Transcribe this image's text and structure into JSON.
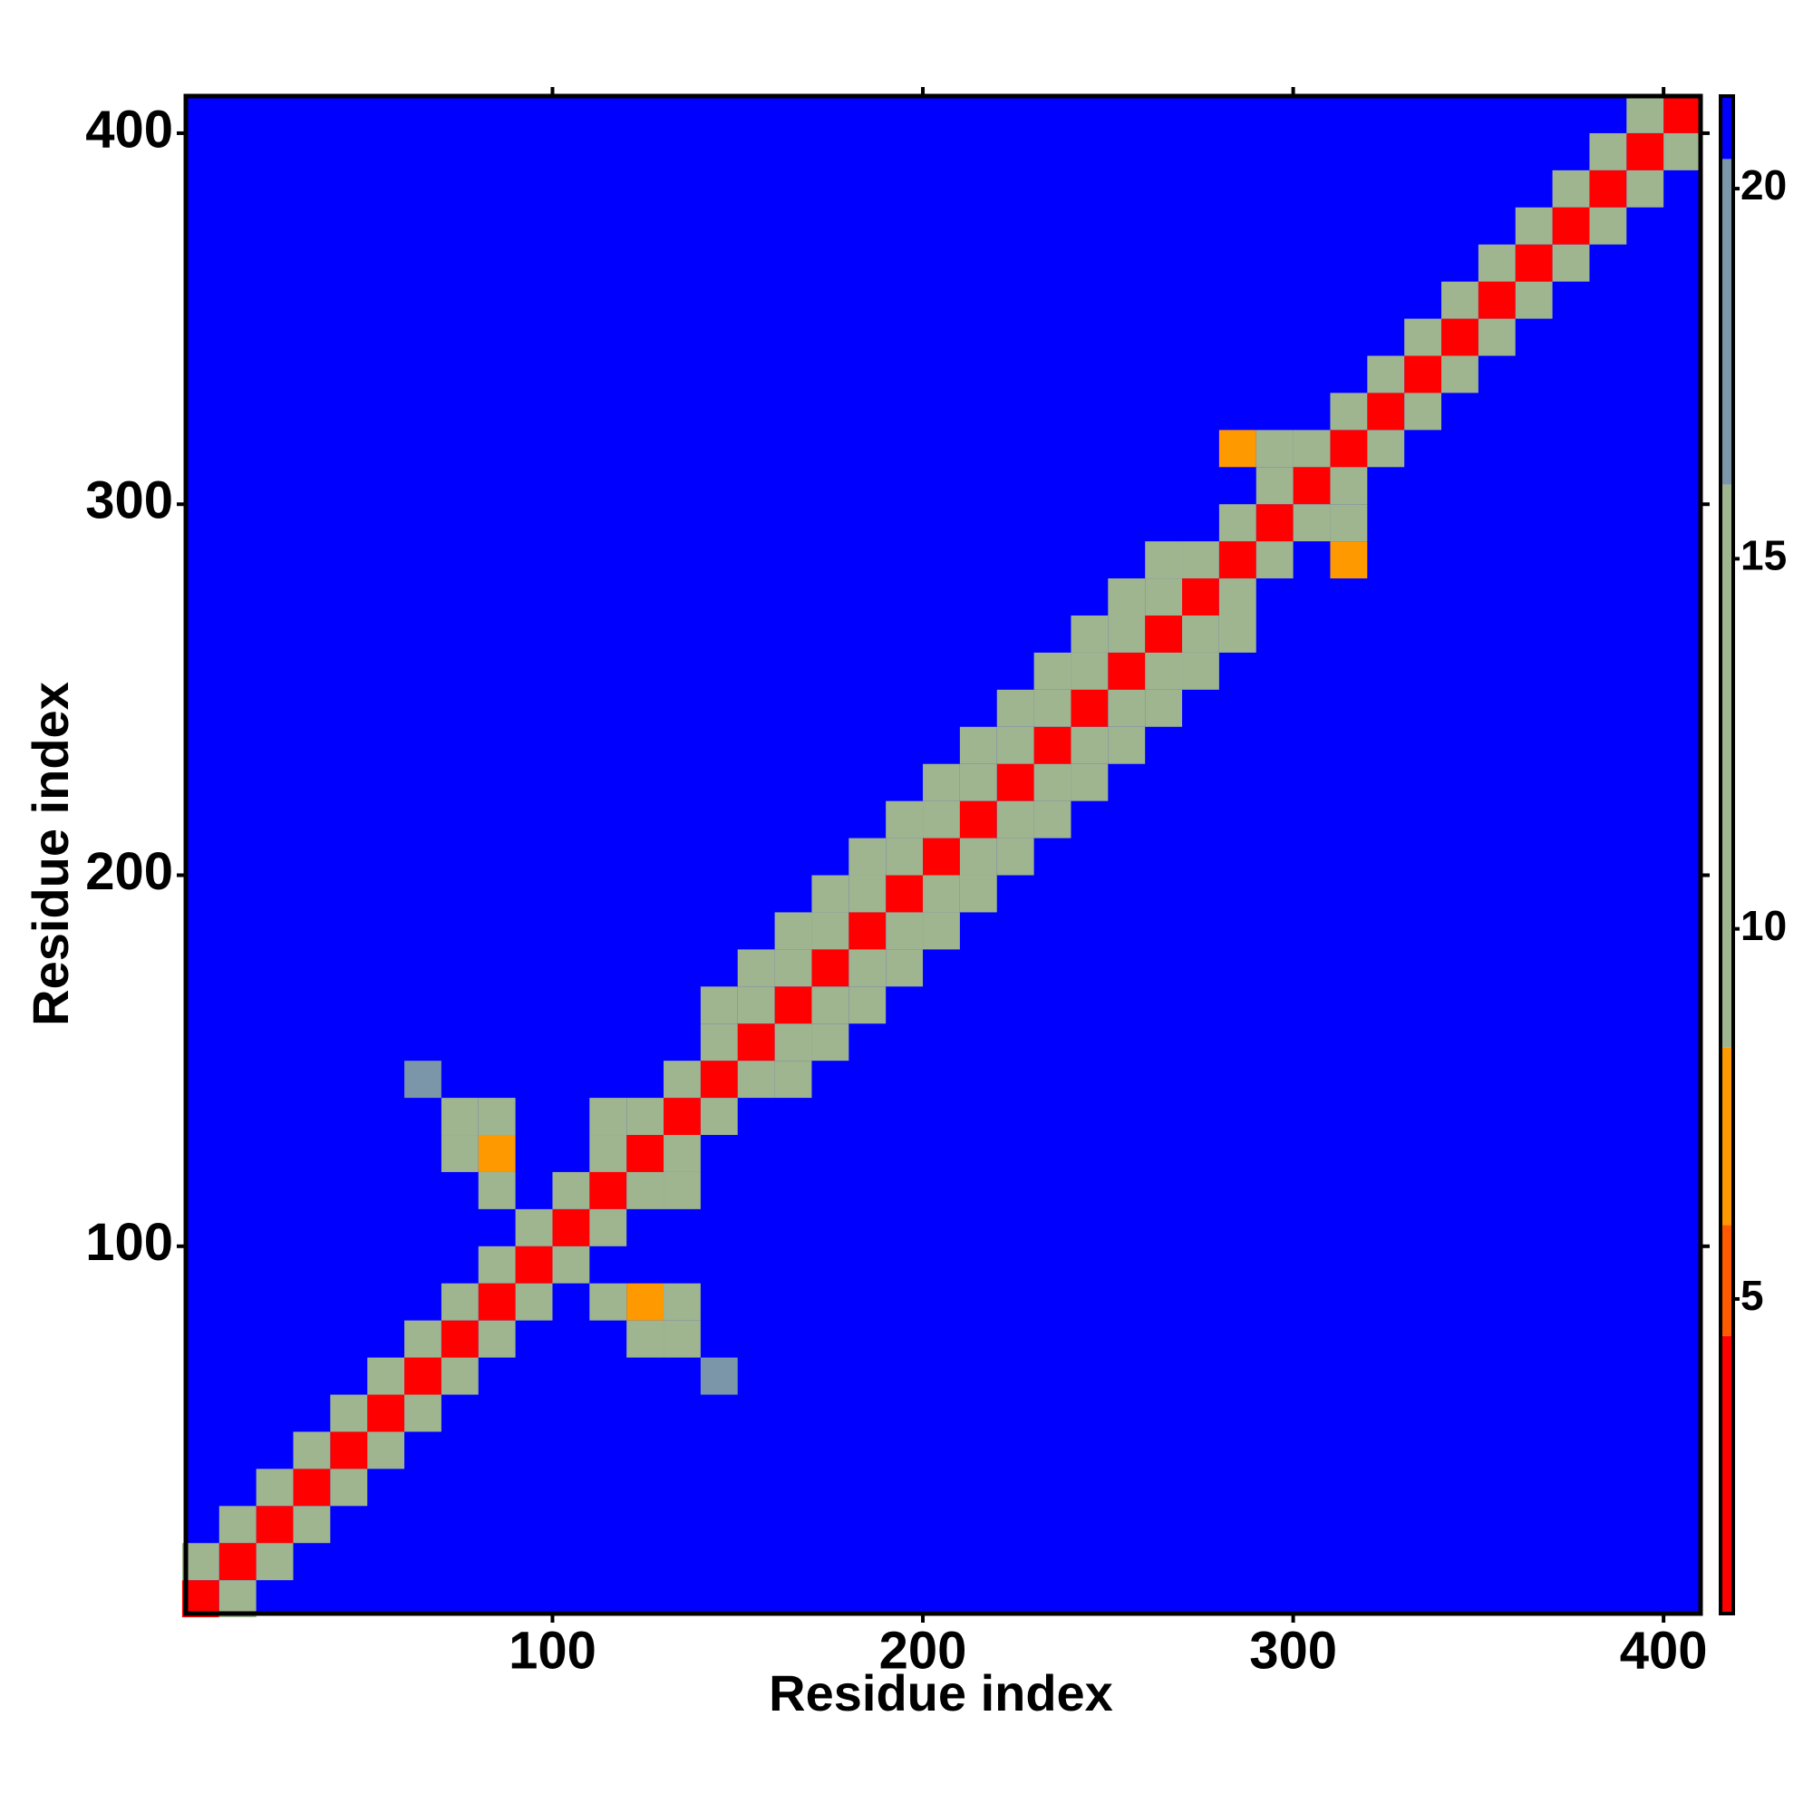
{
  "chart_data": {
    "type": "heatmap",
    "xlabel": "Residue index",
    "ylabel": "Residue index",
    "xlim": [
      1,
      410
    ],
    "ylim": [
      1,
      410
    ],
    "xticks": [
      100,
      200,
      300,
      400
    ],
    "yticks": [
      100,
      200,
      300,
      400
    ],
    "background_value": 21,
    "x": [
      5,
      15,
      25,
      35,
      45,
      55,
      65,
      75,
      85,
      95,
      105,
      115,
      125,
      135,
      145,
      155,
      165,
      175,
      185,
      195,
      205,
      215,
      225,
      235,
      245,
      255,
      265,
      275,
      285,
      295,
      305,
      315,
      325,
      335,
      345,
      355,
      365,
      375,
      385,
      395,
      405,
      5,
      15,
      25,
      35,
      45,
      55,
      65,
      75,
      85,
      95,
      105,
      115,
      125,
      135,
      145,
      155,
      165,
      175,
      185,
      195,
      205,
      215,
      225,
      235,
      245,
      255,
      265,
      275,
      285,
      295,
      305,
      315,
      325,
      335,
      345,
      355,
      365,
      375,
      385,
      395,
      15,
      25,
      35,
      45,
      55,
      65,
      75,
      85,
      95,
      105,
      115,
      125,
      135,
      145,
      155,
      165,
      175,
      185,
      195,
      205,
      215,
      225,
      235,
      245,
      255,
      265,
      275,
      285,
      295,
      305,
      315,
      325,
      335,
      345,
      355,
      365,
      375,
      385,
      395,
      405,
      145,
      155,
      165,
      175,
      185,
      195,
      205,
      215,
      225,
      235,
      245,
      255,
      265,
      165,
      175,
      185,
      195,
      205,
      215,
      225,
      235,
      245,
      255,
      265,
      275,
      285,
      85,
      125,
      75,
      125,
      75,
      135,
      85,
      135,
      65,
      145,
      85,
      115,
      115,
      135,
      285,
      315,
      295,
      315
    ],
    "y": [
      5,
      15,
      25,
      35,
      45,
      55,
      65,
      75,
      85,
      95,
      105,
      115,
      125,
      135,
      145,
      155,
      165,
      175,
      185,
      195,
      205,
      215,
      225,
      235,
      245,
      255,
      265,
      275,
      285,
      295,
      305,
      315,
      325,
      335,
      345,
      355,
      365,
      375,
      385,
      395,
      405,
      15,
      25,
      35,
      45,
      55,
      65,
      75,
      85,
      95,
      105,
      115,
      125,
      135,
      145,
      155,
      165,
      175,
      185,
      195,
      205,
      215,
      225,
      235,
      245,
      255,
      265,
      275,
      285,
      295,
      305,
      315,
      325,
      335,
      345,
      355,
      365,
      375,
      385,
      395,
      405,
      5,
      15,
      25,
      35,
      45,
      55,
      65,
      75,
      85,
      95,
      105,
      115,
      125,
      135,
      145,
      155,
      165,
      175,
      185,
      195,
      205,
      215,
      225,
      235,
      245,
      255,
      265,
      275,
      285,
      295,
      305,
      315,
      325,
      335,
      345,
      355,
      365,
      375,
      385,
      395,
      165,
      175,
      185,
      195,
      205,
      215,
      225,
      235,
      245,
      255,
      265,
      275,
      285,
      145,
      155,
      165,
      175,
      185,
      195,
      205,
      215,
      225,
      235,
      245,
      255,
      265,
      125,
      85,
      125,
      75,
      135,
      75,
      135,
      85,
      145,
      65,
      115,
      85,
      135,
      115,
      315,
      285,
      315,
      295
    ],
    "values": [
      2,
      2,
      2,
      2,
      2,
      2,
      2,
      2,
      2,
      2,
      2,
      2,
      2,
      2,
      2,
      2,
      2,
      2,
      2,
      2,
      2,
      2,
      2,
      2,
      2,
      2,
      2,
      2,
      2,
      2,
      2,
      2,
      2,
      2,
      2,
      2,
      2,
      2,
      2,
      2,
      2,
      11,
      11,
      11,
      11,
      11,
      11,
      11,
      11,
      11,
      11,
      11,
      11,
      11,
      11,
      11,
      11,
      11,
      11,
      11,
      11,
      11,
      11,
      11,
      11,
      11,
      11,
      11,
      11,
      11,
      11,
      11,
      11,
      11,
      11,
      11,
      11,
      11,
      11,
      11,
      11,
      11,
      11,
      11,
      11,
      11,
      11,
      11,
      11,
      11,
      11,
      11,
      11,
      11,
      11,
      11,
      11,
      11,
      11,
      11,
      11,
      11,
      11,
      11,
      11,
      11,
      11,
      11,
      11,
      11,
      11,
      11,
      11,
      11,
      11,
      11,
      11,
      11,
      11,
      11,
      11,
      14,
      14,
      14,
      14,
      14,
      14,
      14,
      14,
      14,
      14,
      14,
      14,
      14,
      14,
      14,
      14,
      14,
      14,
      14,
      14,
      14,
      14,
      14,
      14,
      14,
      14,
      6,
      6,
      13,
      13,
      14,
      14,
      13,
      13,
      16,
      16,
      14,
      14,
      14,
      14,
      6,
      6,
      15,
      15
    ],
    "colorscale": [
      [
        0.75,
        "#ff0000"
      ],
      [
        4.5,
        "#ff5a00"
      ],
      [
        6,
        "#ff9900"
      ],
      [
        8.4,
        "#9fb58f"
      ],
      [
        16,
        "#7a96a8"
      ],
      [
        20.4,
        "#0000ff"
      ]
    ],
    "clim": [
      0.75,
      21.25
    ],
    "cticks": [
      5,
      10,
      15,
      20
    ]
  }
}
